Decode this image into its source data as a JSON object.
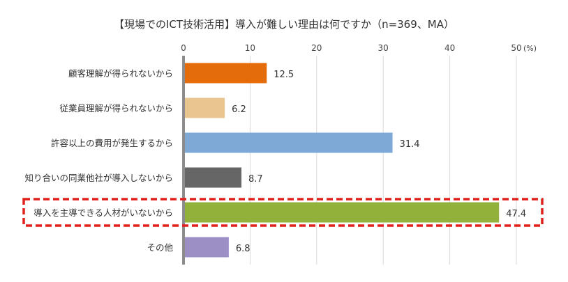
{
  "chart_data": {
    "type": "bar",
    "orientation": "horizontal",
    "title": "【現場でのICT技術活用】導入が難しい理由は何ですか（n=369、MA）",
    "xlabel": "",
    "ylabel": "",
    "xlim": [
      0,
      50
    ],
    "x_ticks": [
      "0",
      "10",
      "20",
      "30",
      "40",
      "50"
    ],
    "x_unit": "(%)",
    "grid": true,
    "categories": [
      "顧客理解が得られないから",
      "従業員理解が得られないから",
      "許容以上の費用が発生するから",
      "知り合いの同業他社が導入しないから",
      "導入を主導できる人材がいないから",
      "その他"
    ],
    "values": [
      12.5,
      6.2,
      31.4,
      8.7,
      47.4,
      6.8
    ],
    "value_labels": [
      "12.5",
      "6.2",
      "31.4",
      "8.7",
      "47.4",
      "6.8"
    ],
    "bar_colors": [
      "#e46c0a",
      "#e9c58f",
      "#7ea9d6",
      "#666666",
      "#92b13a",
      "#9c8fc6"
    ],
    "highlight_index": 4,
    "highlight_color": "#e0201b"
  }
}
